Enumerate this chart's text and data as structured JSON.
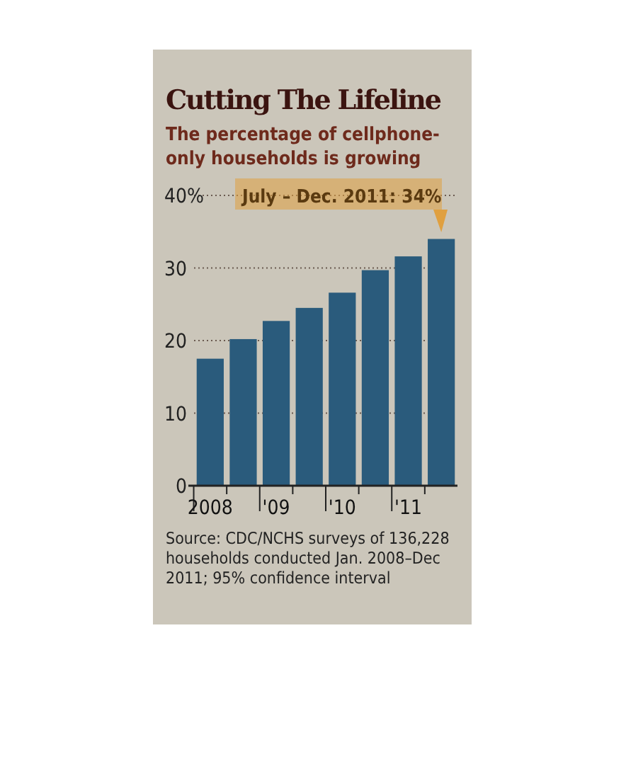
{
  "chart_data": {
    "type": "bar",
    "title": "Cutting The Lifeline",
    "subtitle": "The percentage of cellphone-only households is growing",
    "categories": [
      "2008",
      null,
      "'09",
      null,
      "'10",
      null,
      "'11",
      null
    ],
    "values": [
      17.5,
      20.2,
      22.7,
      24.5,
      26.6,
      29.7,
      31.6,
      34
    ],
    "color": "#2a5b7c",
    "ylim": [
      0,
      40
    ],
    "yticks": [
      0,
      10,
      20,
      30,
      {
        "value": 40,
        "label": "40%"
      }
    ],
    "grid": "y",
    "annotations": [
      "July – Dec. 2011: 34%",
      "Source: CDC/NCHS surveys of 136,228 households conducted Jan. 2008–Dec 2011; 95% confidence interval"
    ]
  }
}
